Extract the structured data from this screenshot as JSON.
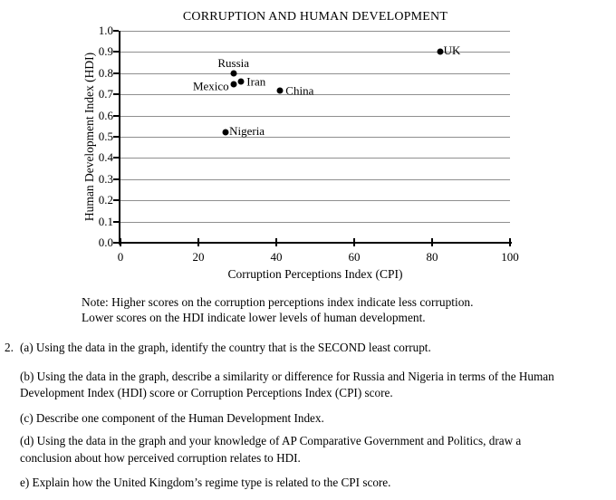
{
  "chart": {
    "title": "CORRUPTION AND HUMAN DEVELOPMENT",
    "x_axis": {
      "label": "Corruption Perceptions Index (CPI)",
      "ticks": [
        "0",
        "20",
        "40",
        "60",
        "80",
        "100"
      ]
    },
    "y_axis": {
      "label": "Human Development Index (HDI)",
      "ticks": [
        "1.0",
        "0.9",
        "0.8",
        "0.7",
        "0.6",
        "0.5",
        "0.4",
        "0.3",
        "0.2",
        "0.1",
        "0.0"
      ]
    }
  },
  "chart_data": {
    "type": "scatter",
    "title": "CORRUPTION AND HUMAN DEVELOPMENT",
    "xlabel": "Corruption Perceptions Index (CPI)",
    "ylabel": "Human Development Index (HDI)",
    "xlim": [
      0,
      100
    ],
    "ylim": [
      0.0,
      1.0
    ],
    "x_ticks": [
      0,
      20,
      40,
      60,
      80,
      100
    ],
    "y_ticks": [
      0.0,
      0.1,
      0.2,
      0.3,
      0.4,
      0.5,
      0.6,
      0.7,
      0.8,
      0.9,
      1.0
    ],
    "grid": "horizontal-only",
    "legend": "none",
    "point_color": "#000000",
    "gridline_color": "#8f8f8f",
    "points": [
      {
        "label": "UK",
        "cpi": 82,
        "hdi": 0.9,
        "label_pos": "right-up"
      },
      {
        "label": "Russia",
        "cpi": 29,
        "hdi": 0.8,
        "label_pos": "above"
      },
      {
        "label": "Iran",
        "cpi": 31,
        "hdi": 0.76,
        "label_pos": "right"
      },
      {
        "label": "Mexico",
        "cpi": 29,
        "hdi": 0.75,
        "label_pos": "left"
      },
      {
        "label": "China",
        "cpi": 41,
        "hdi": 0.72,
        "label_pos": "right"
      },
      {
        "label": "Nigeria",
        "cpi": 27,
        "hdi": 0.52,
        "label_pos": "right-up"
      }
    ]
  },
  "note": {
    "lines": [
      "Note: Higher scores on the corruption perceptions index indicate less corruption.",
      "Lower scores on the HDI indicate lower levels of human development."
    ]
  },
  "questions": {
    "number": "2.",
    "items": [
      {
        "id": "a",
        "lines": [
          "(a) Using the data in the graph, identify the country that is the SECOND least corrupt."
        ]
      },
      {
        "id": "b",
        "lines": [
          "(b) Using the data in the graph, describe a similarity or difference for Russia and Nigeria in terms of the Human",
          "Development Index (HDI) score or Corruption Perceptions Index (CPI) score."
        ]
      },
      {
        "id": "c",
        "lines": [
          "(c) Describe one component of the Human Development Index."
        ]
      },
      {
        "id": "d",
        "lines": [
          "(d) Using the data in the graph and your knowledge of AP Comparative Government and Politics, draw a",
          "conclusion about how perceived corruption relates to HDI."
        ]
      },
      {
        "id": "e",
        "lines": [
          "e) Explain how the United Kingdom’s regime type is related to the CPI score."
        ]
      }
    ]
  }
}
